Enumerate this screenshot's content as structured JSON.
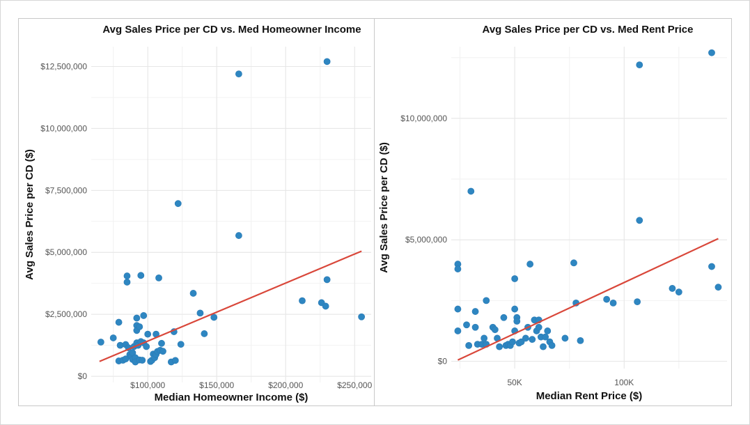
{
  "chart_data": [
    {
      "type": "scatter",
      "title": "Avg Sales Price per CD vs. Med Homeowner Income",
      "xlabel": "Median Homeowner Income ($)",
      "ylabel": "Avg Sales Price per CD ($)",
      "xlim": [
        59000,
        262000
      ],
      "ylim": [
        -250000,
        13300000
      ],
      "x_ticks": [
        100000,
        150000,
        200000,
        250000
      ],
      "x_tick_labels": [
        "$100,000",
        "$150,000",
        "$200,000",
        "$250,000"
      ],
      "y_ticks": [
        0,
        2500000,
        5000000,
        7500000,
        10000000,
        12500000
      ],
      "y_tick_labels": [
        "$0",
        "$2,500,000",
        "$5,000,000",
        "$7,500,000",
        "$10,000,000",
        "$12,500,000"
      ],
      "grid": true,
      "point_color": "#2e86c1",
      "trend_color": "#d9473a",
      "trendline": {
        "x": [
          65000,
          255000
        ],
        "y": [
          600000,
          5050000
        ]
      },
      "points": [
        [
          66000,
          1380000
        ],
        [
          75000,
          1550000
        ],
        [
          79000,
          2180000
        ],
        [
          79000,
          620000
        ],
        [
          80000,
          1250000
        ],
        [
          82000,
          650000
        ],
        [
          84000,
          1280000
        ],
        [
          84000,
          700000
        ],
        [
          85000,
          4050000
        ],
        [
          85000,
          3800000
        ],
        [
          86000,
          1150000
        ],
        [
          87000,
          880000
        ],
        [
          88000,
          800000
        ],
        [
          89000,
          950000
        ],
        [
          89000,
          680000
        ],
        [
          90000,
          1200000
        ],
        [
          91000,
          750000
        ],
        [
          91000,
          580000
        ],
        [
          92000,
          2050000
        ],
        [
          92000,
          1850000
        ],
        [
          92000,
          2350000
        ],
        [
          92000,
          1350000
        ],
        [
          93000,
          1250000
        ],
        [
          94000,
          2000000
        ],
        [
          94000,
          660000
        ],
        [
          95000,
          1400000
        ],
        [
          95000,
          4070000
        ],
        [
          96000,
          650000
        ],
        [
          97000,
          1350000
        ],
        [
          97000,
          2450000
        ],
        [
          99000,
          1200000
        ],
        [
          100000,
          1700000
        ],
        [
          102000,
          600000
        ],
        [
          103000,
          650000
        ],
        [
          104000,
          900000
        ],
        [
          105000,
          750000
        ],
        [
          106000,
          880000
        ],
        [
          106000,
          1700000
        ],
        [
          107000,
          1000000
        ],
        [
          108000,
          3970000
        ],
        [
          109000,
          1050000
        ],
        [
          110000,
          1330000
        ],
        [
          111000,
          1010000
        ],
        [
          117000,
          580000
        ],
        [
          119000,
          1800000
        ],
        [
          120000,
          640000
        ],
        [
          122000,
          6970000
        ],
        [
          124000,
          1290000
        ],
        [
          133000,
          3350000
        ],
        [
          138000,
          2550000
        ],
        [
          141000,
          1720000
        ],
        [
          148000,
          2380000
        ],
        [
          166000,
          12200000
        ],
        [
          166000,
          5680000
        ],
        [
          212000,
          3050000
        ],
        [
          226000,
          2970000
        ],
        [
          229000,
          2830000
        ],
        [
          230000,
          3900000
        ],
        [
          230000,
          12700000
        ],
        [
          255000,
          2400000
        ]
      ]
    },
    {
      "type": "scatter",
      "title": "Avg Sales Price per CD vs. Med Rent Price",
      "xlabel": "Median Rent Price ($)",
      "ylabel": "Avg Sales Price per CD ($)",
      "xlim": [
        21000,
        147000
      ],
      "ylim": [
        -300000,
        12950000
      ],
      "x_ticks": [
        50000,
        100000
      ],
      "x_tick_labels": [
        "50K",
        "100K"
      ],
      "y_ticks": [
        0,
        5000000,
        10000000
      ],
      "y_tick_labels": [
        "$0",
        "$5,000,000",
        "$10,000,000"
      ],
      "grid": true,
      "point_color": "#2e86c1",
      "trend_color": "$d9473a",
      "trendline": {
        "x": [
          24000,
          143000
        ],
        "y": [
          50000,
          5050000
        ]
      },
      "points": [
        [
          24000,
          4000000
        ],
        [
          24000,
          3800000
        ],
        [
          24000,
          2150000
        ],
        [
          24000,
          1250000
        ],
        [
          28000,
          1500000
        ],
        [
          29000,
          650000
        ],
        [
          30000,
          7000000
        ],
        [
          32000,
          2050000
        ],
        [
          32000,
          1400000
        ],
        [
          33000,
          700000
        ],
        [
          35000,
          700000
        ],
        [
          36000,
          950000
        ],
        [
          37000,
          2500000
        ],
        [
          37000,
          700000
        ],
        [
          40000,
          1400000
        ],
        [
          41000,
          1300000
        ],
        [
          42000,
          950000
        ],
        [
          43000,
          600000
        ],
        [
          45000,
          1800000
        ],
        [
          46000,
          650000
        ],
        [
          47000,
          700000
        ],
        [
          48000,
          650000
        ],
        [
          49000,
          800000
        ],
        [
          50000,
          3400000
        ],
        [
          50000,
          2150000
        ],
        [
          50000,
          1250000
        ],
        [
          51000,
          1800000
        ],
        [
          51000,
          1650000
        ],
        [
          52000,
          750000
        ],
        [
          53000,
          800000
        ],
        [
          55000,
          950000
        ],
        [
          56000,
          1400000
        ],
        [
          57000,
          4000000
        ],
        [
          58000,
          900000
        ],
        [
          59000,
          1700000
        ],
        [
          60000,
          1250000
        ],
        [
          61000,
          1700000
        ],
        [
          61000,
          1400000
        ],
        [
          62000,
          1000000
        ],
        [
          63000,
          600000
        ],
        [
          64000,
          1000000
        ],
        [
          65000,
          1250000
        ],
        [
          66000,
          800000
        ],
        [
          67000,
          650000
        ],
        [
          73000,
          950000
        ],
        [
          77000,
          4050000
        ],
        [
          78000,
          2400000
        ],
        [
          80000,
          850000
        ],
        [
          92000,
          2550000
        ],
        [
          95000,
          2400000
        ],
        [
          106000,
          2450000
        ],
        [
          107000,
          12200000
        ],
        [
          107000,
          5800000
        ],
        [
          122000,
          3000000
        ],
        [
          125000,
          2850000
        ],
        [
          140000,
          3900000
        ],
        [
          140000,
          12700000
        ],
        [
          143000,
          3050000
        ]
      ]
    }
  ]
}
